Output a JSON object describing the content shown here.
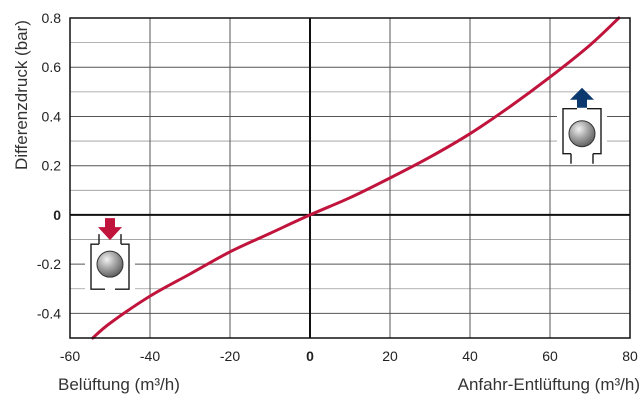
{
  "chart_data": {
    "type": "line",
    "title": "",
    "ylabel": "Differenzdruck (bar)",
    "xlabel_left": "Belüftung (m³/h)",
    "xlabel_right": "Anfahr-Entlüftung (m³/h)",
    "xlim": [
      -60,
      80
    ],
    "ylim": [
      -0.5,
      0.8
    ],
    "grid": true,
    "x_ticks": [
      {
        "value": -60,
        "label": "-60"
      },
      {
        "value": -40,
        "label": "-40"
      },
      {
        "value": -20,
        "label": "-20"
      },
      {
        "value": 0,
        "label": "0"
      },
      {
        "value": 20,
        "label": "20"
      },
      {
        "value": 40,
        "label": "40"
      },
      {
        "value": 60,
        "label": "60"
      },
      {
        "value": 80,
        "label": "80"
      }
    ],
    "y_ticks": [
      {
        "value": 0.8,
        "label": "0.8"
      },
      {
        "value": 0.6,
        "label": "0.6"
      },
      {
        "value": 0.4,
        "label": "0.4"
      },
      {
        "value": 0.2,
        "label": "0.2"
      },
      {
        "value": 0,
        "label": "0"
      },
      {
        "value": -0.2,
        "label": "-0.2"
      },
      {
        "value": -0.4,
        "label": "-0.4"
      }
    ],
    "y_minor_grid": [
      0.7,
      0.5,
      0.3,
      0.1,
      -0.1,
      -0.3
    ],
    "series": [
      {
        "color": "#c0143c",
        "x": [
          -54.3,
          -50,
          -40,
          -30,
          -20,
          -10,
          0,
          10,
          20,
          30,
          40,
          50,
          60,
          70,
          77.2
        ],
        "y": [
          -0.5,
          -0.44,
          -0.33,
          -0.24,
          -0.15,
          -0.075,
          0.0,
          0.07,
          0.15,
          0.235,
          0.33,
          0.44,
          0.56,
          0.69,
          0.8
        ]
      }
    ],
    "icons": [
      {
        "name": "valve-ventilation-icon",
        "arrow": "down",
        "arrow_color": "#c0143c",
        "x": -50,
        "y": -0.2
      },
      {
        "name": "valve-venting-icon",
        "arrow": "up",
        "arrow_color": "#0d3a6e",
        "x": 68,
        "y": 0.33
      }
    ]
  }
}
